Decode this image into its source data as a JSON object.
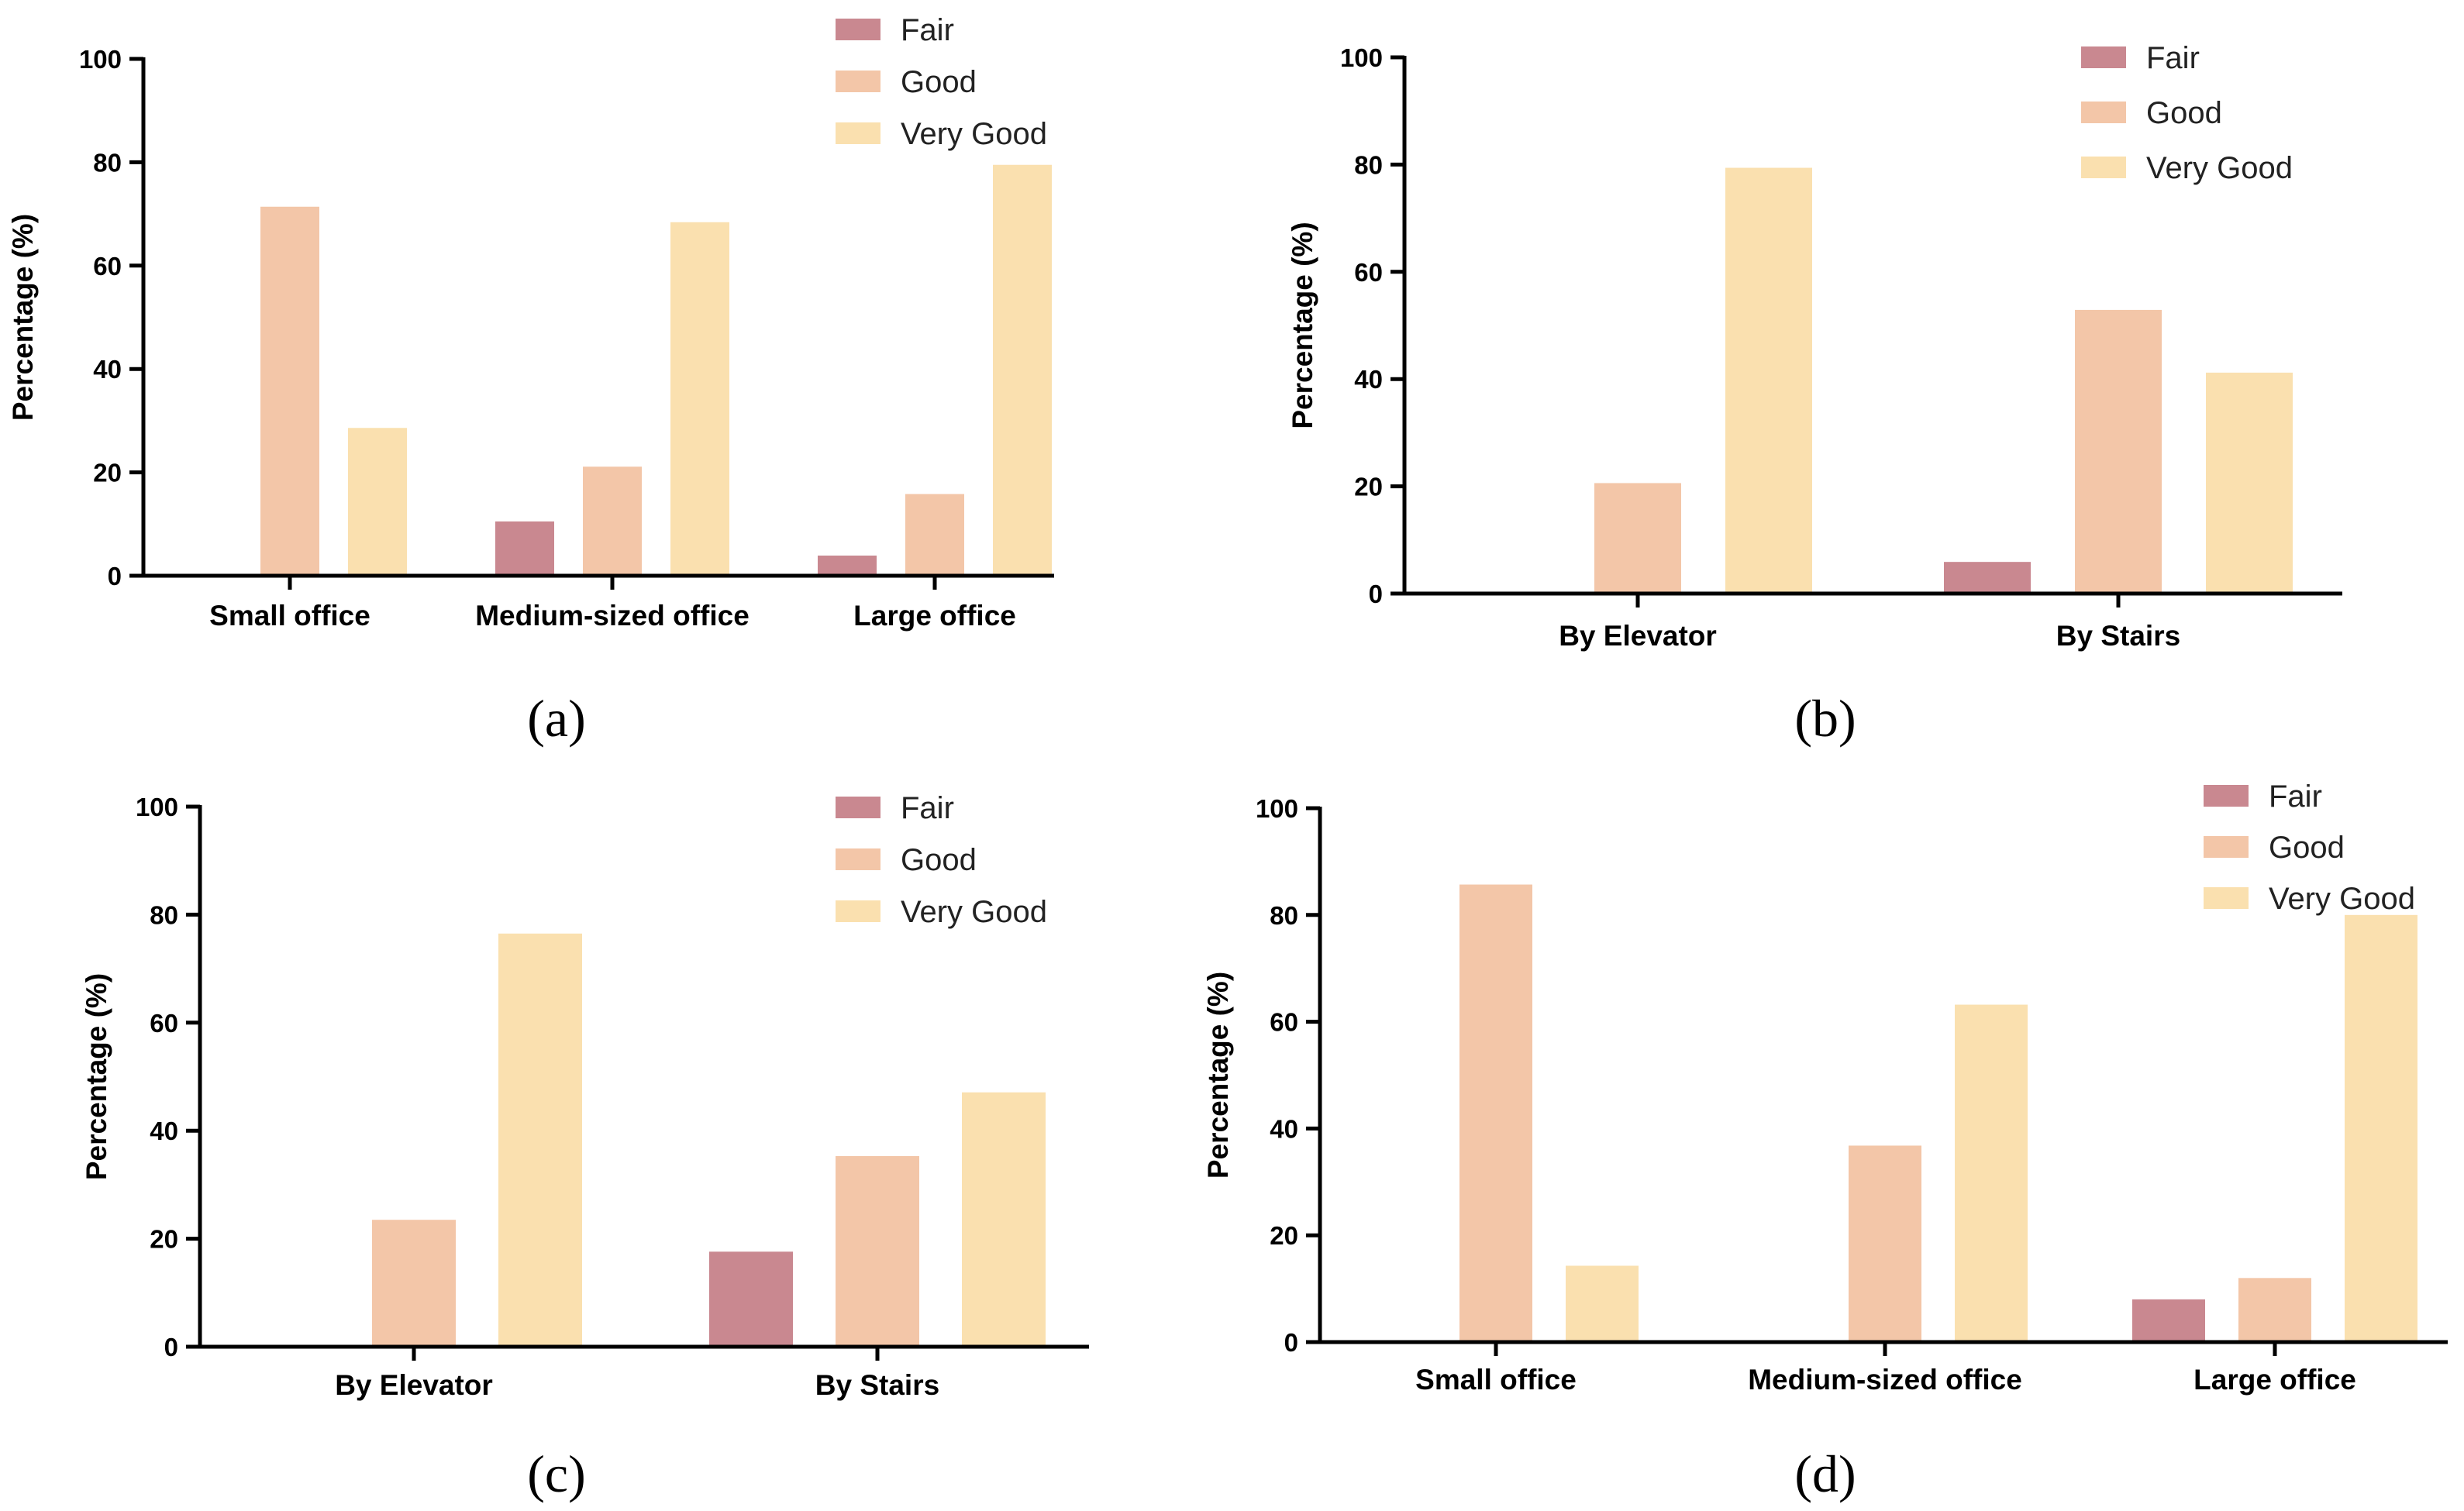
{
  "colors": {
    "Fair": "#c98890",
    "Good": "#f3c6a8",
    "Very Good": "#fae0af",
    "axis": "#000000"
  },
  "chart_data": [
    {
      "panel_label": "(a)",
      "type": "bar",
      "ylabel": "Percentage (%)",
      "ylim": [
        0,
        100
      ],
      "yticks": [
        "0",
        "20",
        "40",
        "60",
        "80",
        "100"
      ],
      "legend": [
        "Fair",
        "Good",
        "Very Good"
      ],
      "legend_position": "top-right",
      "categories": [
        "Small office",
        "Medium-sized office",
        "Large office"
      ],
      "series": [
        {
          "name": "Fair",
          "values": [
            0,
            10.5,
            3.9
          ]
        },
        {
          "name": "Good",
          "values": [
            71.4,
            21.1,
            15.8
          ]
        },
        {
          "name": "Very Good",
          "values": [
            28.6,
            68.4,
            79.5
          ]
        }
      ]
    },
    {
      "panel_label": "(b)",
      "type": "bar",
      "ylabel": "Percentage (%)",
      "ylim": [
        0,
        100
      ],
      "yticks": [
        "0",
        "20",
        "40",
        "60",
        "80",
        "100"
      ],
      "legend": [
        "Fair",
        "Good",
        "Very Good"
      ],
      "legend_position": "top-right",
      "categories": [
        "By Elevator",
        "By Stairs"
      ],
      "series": [
        {
          "name": "Fair",
          "values": [
            0,
            5.9
          ]
        },
        {
          "name": "Good",
          "values": [
            20.6,
            52.9
          ]
        },
        {
          "name": "Very Good",
          "values": [
            79.4,
            41.2
          ]
        }
      ]
    },
    {
      "panel_label": "(c)",
      "type": "bar",
      "ylabel": "Percentage (%)",
      "ylim": [
        0,
        100
      ],
      "yticks": [
        "0",
        "20",
        "40",
        "60",
        "80",
        "100"
      ],
      "legend": [
        "Fair",
        "Good",
        "Very Good"
      ],
      "legend_position": "top-right",
      "categories": [
        "By Elevator",
        "By Stairs"
      ],
      "series": [
        {
          "name": "Fair",
          "values": [
            0,
            17.6
          ]
        },
        {
          "name": "Good",
          "values": [
            23.5,
            35.3
          ]
        },
        {
          "name": "Very Good",
          "values": [
            76.5,
            47.1
          ]
        }
      ]
    },
    {
      "panel_label": "(d)",
      "type": "bar",
      "ylabel": "Percentage (%)",
      "ylim": [
        0,
        100
      ],
      "yticks": [
        "0",
        "20",
        "40",
        "60",
        "80",
        "100"
      ],
      "legend": [
        "Fair",
        "Good",
        "Very Good"
      ],
      "legend_position": "top-right",
      "categories": [
        "Small office",
        "Medium-sized office",
        "Large office"
      ],
      "series": [
        {
          "name": "Fair",
          "values": [
            0,
            0,
            8
          ]
        },
        {
          "name": "Good",
          "values": [
            85.7,
            36.8,
            12
          ]
        },
        {
          "name": "Very Good",
          "values": [
            14.3,
            63.2,
            80
          ]
        }
      ]
    }
  ]
}
